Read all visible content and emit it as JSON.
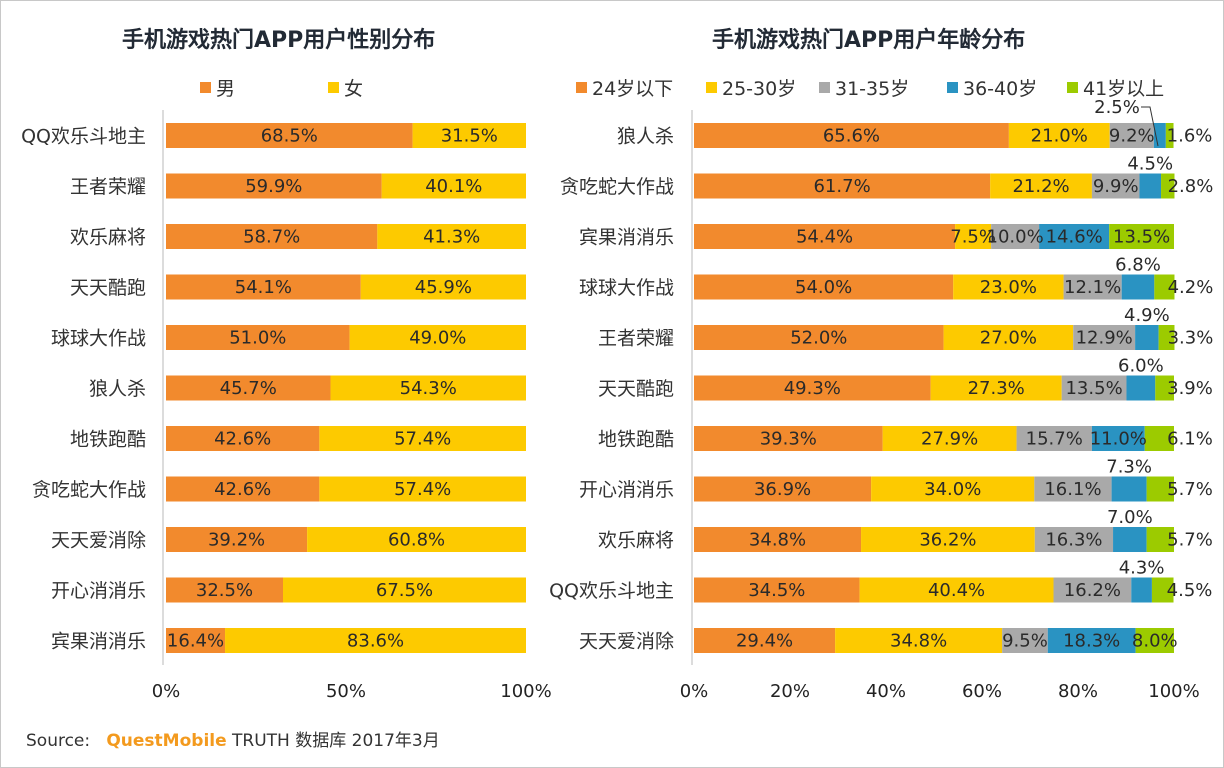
{
  "source": {
    "prefix": "Source:",
    "brand": "QuestMobile",
    "suffix": "TRUTH 数据库 2017年3月"
  },
  "chart_data": [
    {
      "type": "bar",
      "orientation": "horizontal-stacked-100",
      "title": "手机游戏热门APP用户性别分布",
      "legend_position": "top",
      "categories": [
        "QQ欢乐斗地主",
        "王者荣耀",
        "欢乐麻将",
        "天天酷跑",
        "球球大作战",
        "狼人杀",
        "地铁跑酷",
        "贪吃蛇大作战",
        "天天爱消除",
        "开心消消乐",
        "宾果消消乐"
      ],
      "series": [
        {
          "name": "男",
          "color": "#f28a2d",
          "values": [
            68.5,
            59.9,
            58.7,
            54.1,
            51.0,
            45.7,
            42.6,
            42.6,
            39.2,
            32.5,
            16.4
          ]
        },
        {
          "name": "女",
          "color": "#fdca00",
          "values": [
            31.5,
            40.1,
            41.3,
            45.9,
            49.0,
            54.3,
            57.4,
            57.4,
            60.8,
            67.5,
            83.6
          ]
        }
      ],
      "xlim": [
        0,
        100
      ],
      "xticks": [
        "0%",
        "50%",
        "100%"
      ],
      "xlabel": "",
      "ylabel": "",
      "grid": false
    },
    {
      "type": "bar",
      "orientation": "horizontal-stacked-100",
      "title": "手机游戏热门APP用户年龄分布",
      "legend_position": "top",
      "categories": [
        "狼人杀",
        "贪吃蛇大作战",
        "宾果消消乐",
        "球球大作战",
        "王者荣耀",
        "天天酷跑",
        "地铁跑酷",
        "开心消消乐",
        "欢乐麻将",
        "QQ欢乐斗地主",
        "天天爱消除"
      ],
      "series": [
        {
          "name": "24岁以下",
          "color": "#f28a2d",
          "values": [
            65.6,
            61.7,
            54.4,
            54.0,
            52.0,
            49.3,
            39.3,
            36.9,
            34.8,
            34.5,
            29.4
          ]
        },
        {
          "name": "25-30岁",
          "color": "#fdca00",
          "values": [
            21.0,
            21.2,
            7.5,
            23.0,
            27.0,
            27.3,
            27.9,
            34.0,
            36.2,
            40.4,
            34.8
          ]
        },
        {
          "name": "31-35岁",
          "color": "#a9a9a9",
          "values": [
            9.2,
            9.9,
            10.0,
            12.1,
            12.9,
            13.5,
            15.7,
            16.1,
            16.3,
            16.2,
            9.5
          ]
        },
        {
          "name": "36-40岁",
          "color": "#2a93c2",
          "values": [
            2.5,
            4.5,
            14.6,
            6.8,
            4.9,
            6.0,
            11.0,
            7.3,
            7.0,
            4.3,
            18.3
          ]
        },
        {
          "name": "41岁以上",
          "color": "#9ccb00",
          "values": [
            1.6,
            2.8,
            13.5,
            4.2,
            3.3,
            3.9,
            6.1,
            5.7,
            5.7,
            4.5,
            8.0
          ]
        }
      ],
      "xlim": [
        0,
        100
      ],
      "xticks": [
        "0%",
        "20%",
        "40%",
        "60%",
        "80%",
        "100%"
      ],
      "xlabel": "",
      "ylabel": "",
      "grid": false
    }
  ]
}
